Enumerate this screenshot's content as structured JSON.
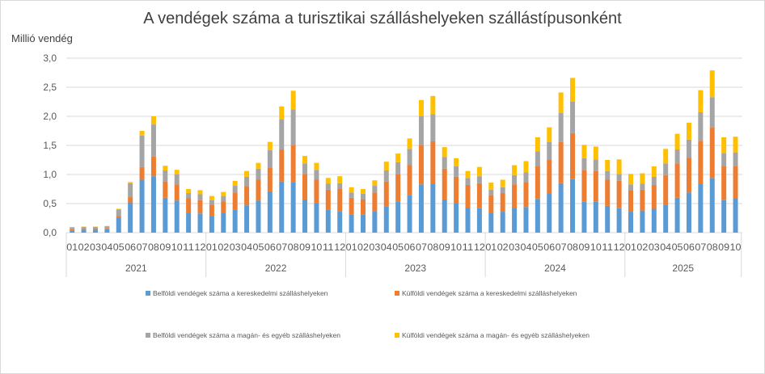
{
  "chart_data": {
    "type": "bar",
    "stacked": true,
    "title": "A vendégek száma a turisztikai szálláshelyeken szállástípusonként",
    "ylabel": "Millió vendég",
    "xlabel": "",
    "ylim": [
      0,
      3.0
    ],
    "yticks": [
      "0,0",
      "0,5",
      "1,0",
      "1,5",
      "2,0",
      "2,5",
      "3,0"
    ],
    "ytick_values": [
      0,
      0.5,
      1.0,
      1.5,
      2.0,
      2.5,
      3.0
    ],
    "grid": true,
    "legend_position": "bottom",
    "years": [
      {
        "label": "2021",
        "months": [
          "01",
          "02",
          "03",
          "04",
          "05",
          "06",
          "07",
          "08",
          "09",
          "10",
          "11",
          "12"
        ]
      },
      {
        "label": "2022",
        "months": [
          "01",
          "02",
          "03",
          "04",
          "05",
          "06",
          "07",
          "08",
          "09",
          "10",
          "11",
          "12"
        ]
      },
      {
        "label": "2023",
        "months": [
          "01",
          "02",
          "03",
          "04",
          "05",
          "06",
          "07",
          "08",
          "09",
          "10",
          "11",
          "12"
        ]
      },
      {
        "label": "2024",
        "months": [
          "01",
          "02",
          "03",
          "04",
          "05",
          "06",
          "07",
          "08",
          "09",
          "10",
          "11",
          "12"
        ]
      },
      {
        "label": "2025",
        "months": [
          "01",
          "02",
          "03",
          "04",
          "05",
          "06",
          "07",
          "08",
          "09",
          "10"
        ]
      }
    ],
    "series": [
      {
        "name": "Belföldi vendégek száma a kereskedelmi szálláshelyeken",
        "color": "#5b9bd5",
        "values": [
          0.04,
          0.05,
          0.05,
          0.06,
          0.25,
          0.52,
          0.91,
          0.97,
          0.6,
          0.55,
          0.34,
          0.33,
          0.29,
          0.34,
          0.4,
          0.47,
          0.55,
          0.71,
          0.88,
          0.87,
          0.57,
          0.5,
          0.39,
          0.37,
          0.31,
          0.31,
          0.37,
          0.45,
          0.53,
          0.64,
          0.83,
          0.84,
          0.57,
          0.5,
          0.43,
          0.42,
          0.34,
          0.36,
          0.43,
          0.44,
          0.58,
          0.68,
          0.85,
          0.92,
          0.53,
          0.53,
          0.46,
          0.42,
          0.36,
          0.38,
          0.41,
          0.48,
          0.6,
          0.69,
          0.84,
          0.94,
          0.56,
          0.59
        ]
      },
      {
        "name": "Külföldi vendégek száma a kereskedelmi szálláshelyeken",
        "color": "#ed7d31",
        "values": [
          0.02,
          0.02,
          0.02,
          0.02,
          0.04,
          0.09,
          0.22,
          0.34,
          0.28,
          0.28,
          0.25,
          0.23,
          0.19,
          0.2,
          0.29,
          0.33,
          0.36,
          0.41,
          0.55,
          0.63,
          0.43,
          0.41,
          0.35,
          0.38,
          0.29,
          0.26,
          0.32,
          0.43,
          0.47,
          0.52,
          0.67,
          0.73,
          0.53,
          0.46,
          0.39,
          0.43,
          0.3,
          0.32,
          0.4,
          0.43,
          0.57,
          0.58,
          0.71,
          0.79,
          0.55,
          0.53,
          0.45,
          0.47,
          0.37,
          0.36,
          0.41,
          0.51,
          0.59,
          0.6,
          0.74,
          0.87,
          0.59,
          0.56
        ]
      },
      {
        "name": "Belföldi vendégek száma a magán- és egyéb szálláshelyeken",
        "color": "#a5a5a5",
        "values": [
          0.03,
          0.03,
          0.03,
          0.03,
          0.11,
          0.24,
          0.54,
          0.55,
          0.19,
          0.17,
          0.09,
          0.1,
          0.08,
          0.09,
          0.12,
          0.16,
          0.19,
          0.3,
          0.52,
          0.62,
          0.19,
          0.17,
          0.1,
          0.1,
          0.09,
          0.1,
          0.12,
          0.19,
          0.21,
          0.28,
          0.5,
          0.47,
          0.2,
          0.18,
          0.12,
          0.12,
          0.1,
          0.1,
          0.16,
          0.17,
          0.25,
          0.3,
          0.5,
          0.54,
          0.2,
          0.2,
          0.15,
          0.12,
          0.1,
          0.1,
          0.14,
          0.2,
          0.24,
          0.31,
          0.49,
          0.52,
          0.22,
          0.23
        ]
      },
      {
        "name": "Külföldi vendégek száma a magán- és egyéb szálláshelyeken",
        "color": "#ffc000",
        "values": [
          0.005,
          0.005,
          0.005,
          0.005,
          0.01,
          0.02,
          0.08,
          0.14,
          0.08,
          0.08,
          0.07,
          0.07,
          0.07,
          0.07,
          0.08,
          0.1,
          0.1,
          0.14,
          0.22,
          0.32,
          0.13,
          0.12,
          0.1,
          0.12,
          0.09,
          0.08,
          0.09,
          0.15,
          0.15,
          0.18,
          0.28,
          0.31,
          0.17,
          0.14,
          0.12,
          0.16,
          0.12,
          0.13,
          0.17,
          0.19,
          0.24,
          0.25,
          0.35,
          0.41,
          0.23,
          0.22,
          0.19,
          0.25,
          0.18,
          0.18,
          0.18,
          0.25,
          0.27,
          0.29,
          0.38,
          0.46,
          0.27,
          0.27
        ]
      }
    ]
  }
}
